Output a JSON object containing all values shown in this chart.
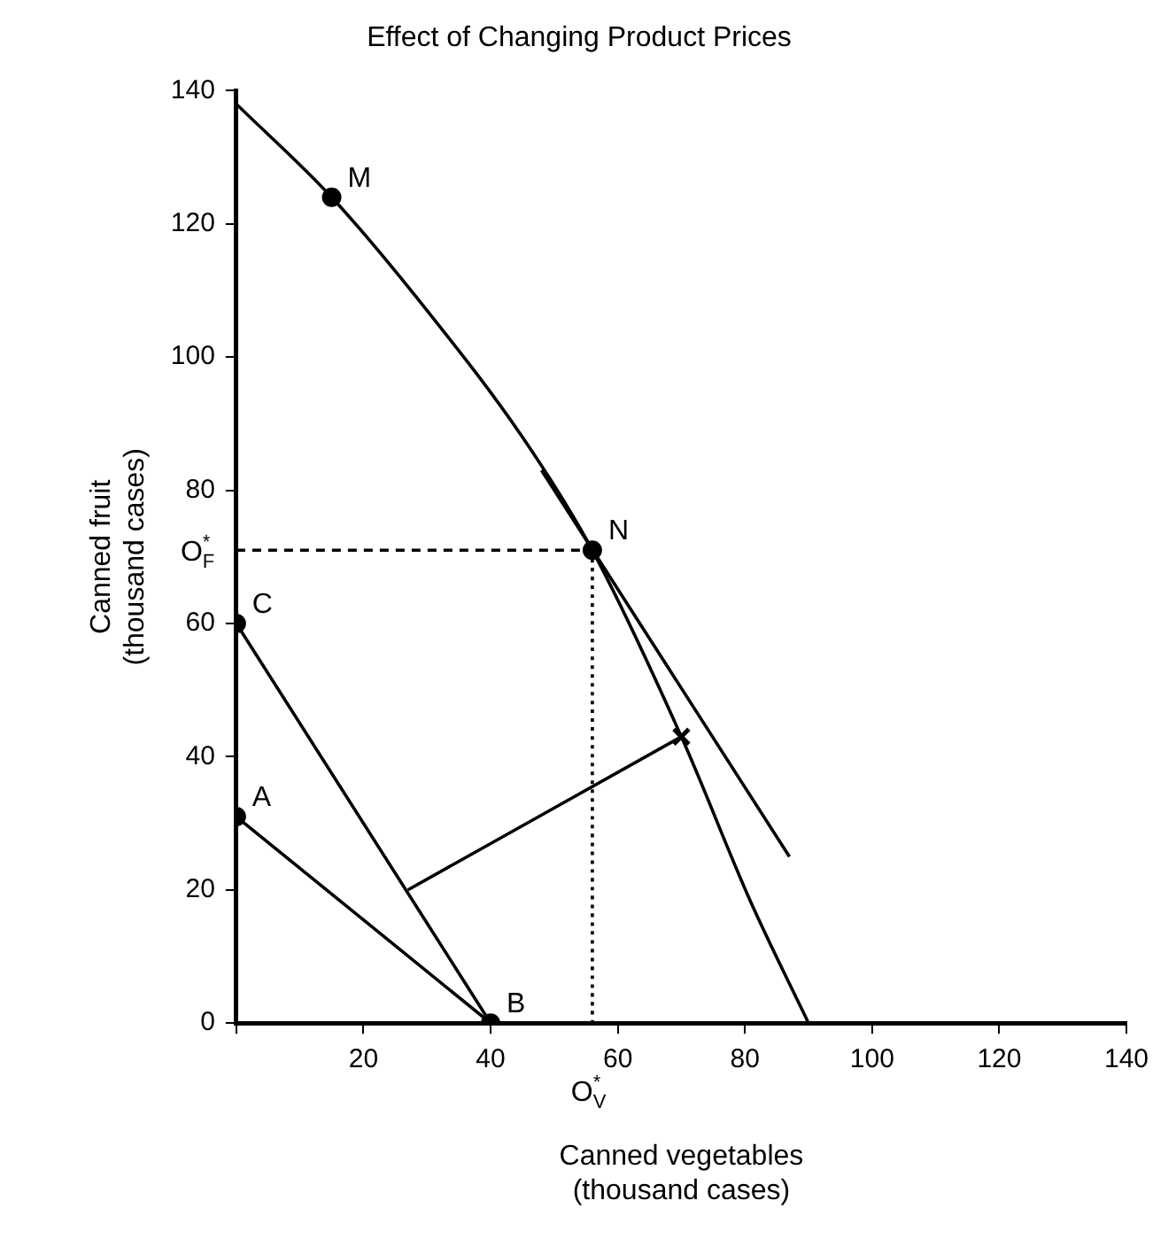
{
  "chart_data": {
    "type": "line",
    "title": "Effect of Changing Product Prices",
    "xlabel": "Canned vegetables\n(thousand cases)",
    "ylabel": "Canned fruit\n(thousand cases)",
    "xlim": [
      0,
      140
    ],
    "ylim": [
      0,
      140
    ],
    "xticks": [
      {
        "value": 0,
        "label": null
      },
      20,
      40,
      60,
      80,
      100,
      120,
      140
    ],
    "yticks": [
      0,
      20,
      40,
      60,
      80,
      100,
      120,
      140
    ],
    "grid": false,
    "legend": false,
    "series": [
      {
        "type": "line",
        "color": "#000000",
        "marker": "none",
        "line_style": "solid",
        "x": [
          0,
          15,
          30,
          45,
          56,
          70,
          81,
          90
        ],
        "values": [
          138,
          124,
          107,
          88,
          71,
          43,
          18,
          0
        ]
      },
      {
        "type": "line",
        "color": "#000000",
        "marker": "none",
        "line_style": "solid",
        "x": [
          48,
          87
        ],
        "values": [
          83,
          25
        ]
      },
      {
        "type": "line",
        "color": "#000000",
        "marker": "none",
        "line_style": "solid",
        "x": [
          0,
          40
        ],
        "values": [
          31,
          0
        ]
      },
      {
        "type": "line",
        "color": "#000000",
        "marker": "none",
        "line_style": "solid",
        "x": [
          0,
          40
        ],
        "values": [
          60,
          0
        ]
      },
      {
        "type": "line",
        "color": "#000000",
        "marker": "none",
        "line_style": "solid",
        "x": [
          27,
          70
        ],
        "values": [
          20,
          43
        ]
      },
      {
        "type": "line",
        "color": "#000000",
        "marker": "none",
        "line_style": "dashed",
        "x": [
          0,
          56
        ],
        "values": [
          71,
          71
        ]
      },
      {
        "type": "line",
        "color": "#000000",
        "marker": "none",
        "line_style": "dotted",
        "x": [
          56,
          56
        ],
        "values": [
          71,
          0
        ]
      },
      {
        "type": "scatter",
        "color": "#000000",
        "marker": "circle",
        "x": [
          15,
          56,
          0,
          0,
          40
        ],
        "values": [
          124,
          71,
          60,
          31,
          0
        ]
      },
      {
        "type": "scatter",
        "color": "#000000",
        "marker": "cross",
        "x": [
          70
        ],
        "values": [
          43
        ]
      }
    ],
    "annotations": [
      {
        "text": "M",
        "x": 15,
        "y": 124
      },
      {
        "text": "N",
        "x": 56,
        "y": 71
      },
      {
        "text": "C",
        "x": 0,
        "y": 60
      },
      {
        "text": "A",
        "x": 0,
        "y": 31
      },
      {
        "text": "B",
        "x": 40,
        "y": 0
      },
      {
        "text": "O$^{*}$$_{F}$",
        "x": 0,
        "y": 71
      },
      {
        "text": "O$^{*}$$_{V}$",
        "x": 56,
        "y": 0
      }
    ]
  }
}
